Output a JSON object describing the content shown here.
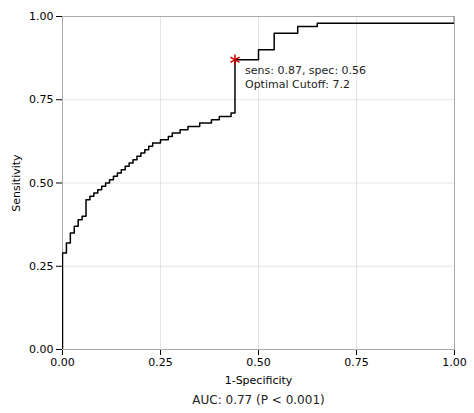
{
  "chart_data": {
    "type": "line",
    "line_style": "step",
    "xlabel": "1-Specificity",
    "ylabel": "Sensitivity",
    "color": "#000000",
    "x": [
      0.0,
      0.0,
      0.0,
      0.0,
      0.01,
      0.01,
      0.02,
      0.02,
      0.03,
      0.03,
      0.04,
      0.04,
      0.05,
      0.05,
      0.06,
      0.06,
      0.07,
      0.07,
      0.08,
      0.08,
      0.09,
      0.09,
      0.1,
      0.1,
      0.11,
      0.11,
      0.12,
      0.12,
      0.13,
      0.13,
      0.14,
      0.14,
      0.15,
      0.15,
      0.16,
      0.16,
      0.17,
      0.17,
      0.18,
      0.18,
      0.19,
      0.19,
      0.2,
      0.2,
      0.21,
      0.21,
      0.22,
      0.22,
      0.23,
      0.23,
      0.24,
      0.24,
      0.25,
      0.25,
      0.26,
      0.26,
      0.27,
      0.27,
      0.28,
      0.28,
      0.29,
      0.29,
      0.3,
      0.3,
      0.31,
      0.31,
      0.32,
      0.32,
      0.33,
      0.33,
      0.34,
      0.34,
      0.35,
      0.35,
      0.36,
      0.36,
      0.37,
      0.37,
      0.38,
      0.38,
      0.39,
      0.39,
      0.4,
      0.4,
      0.41,
      0.41,
      0.42,
      0.42,
      0.43,
      0.43,
      0.44,
      0.44,
      0.5,
      0.5,
      0.54,
      0.54,
      0.6,
      0.6,
      0.65,
      0.65,
      1.0
    ],
    "values": [
      0.0,
      0.0,
      0.13,
      0.29,
      0.29,
      0.32,
      0.32,
      0.35,
      0.35,
      0.37,
      0.37,
      0.39,
      0.39,
      0.4,
      0.4,
      0.45,
      0.45,
      0.46,
      0.46,
      0.47,
      0.47,
      0.48,
      0.48,
      0.49,
      0.49,
      0.5,
      0.5,
      0.51,
      0.51,
      0.52,
      0.52,
      0.53,
      0.53,
      0.54,
      0.54,
      0.55,
      0.55,
      0.56,
      0.56,
      0.57,
      0.57,
      0.58,
      0.58,
      0.59,
      0.59,
      0.6,
      0.6,
      0.61,
      0.61,
      0.62,
      0.62,
      0.62,
      0.62,
      0.63,
      0.63,
      0.63,
      0.63,
      0.64,
      0.64,
      0.65,
      0.65,
      0.65,
      0.65,
      0.66,
      0.66,
      0.66,
      0.66,
      0.67,
      0.67,
      0.67,
      0.67,
      0.67,
      0.67,
      0.68,
      0.68,
      0.68,
      0.68,
      0.68,
      0.68,
      0.69,
      0.69,
      0.69,
      0.69,
      0.7,
      0.7,
      0.7,
      0.7,
      0.7,
      0.7,
      0.71,
      0.71,
      0.87,
      0.87,
      0.9,
      0.9,
      0.95,
      0.95,
      0.97,
      0.97,
      0.98,
      1.0
    ],
    "optimal_point": {
      "x": 0.44,
      "y": 0.87,
      "color": "#cc0000",
      "marker": "asterisk"
    },
    "annotations": [
      "sens: 0.87, spec: 0.56",
      "Optimal Cutoff: 7.2"
    ],
    "caption": "AUC: 0.77 (P < 0.001)",
    "xlim": [
      0.0,
      1.0
    ],
    "ylim": [
      0.0,
      1.0
    ],
    "xticks": [
      {
        "value": 0.0,
        "label": "0.00"
      },
      {
        "value": 0.25,
        "label": "0.25"
      },
      {
        "value": 0.5,
        "label": "0.50"
      },
      {
        "value": 0.75,
        "label": "0.75"
      },
      {
        "value": 1.0,
        "label": "1.00"
      }
    ],
    "yticks": [
      {
        "value": 0.0,
        "label": "0.00"
      },
      {
        "value": 0.25,
        "label": "0.25"
      },
      {
        "value": 0.5,
        "label": "0.50"
      },
      {
        "value": 0.75,
        "label": "0.75"
      },
      {
        "value": 1.0,
        "label": "1.00"
      }
    ],
    "grid": true
  }
}
